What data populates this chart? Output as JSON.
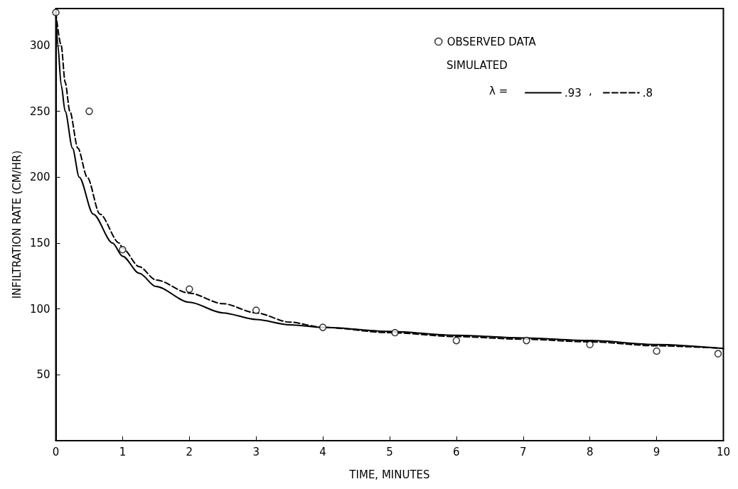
{
  "chart_data": {
    "type": "line",
    "xlabel": "TIME, MINUTES",
    "ylabel": "INFILTRATION RATE (CM/HR)",
    "xlim": [
      0,
      10
    ],
    "xticks": [
      0,
      1,
      2,
      3,
      4,
      5,
      6,
      7,
      8,
      9,
      10
    ],
    "ylim": [
      0,
      328
    ],
    "yticks": [
      50,
      100,
      150,
      200,
      250,
      300
    ],
    "grid": false,
    "legend": "top right",
    "annotations": [
      "SIMULATED",
      "λ =",
      ","
    ],
    "series": [
      {
        "name": "OBSERVED DATA",
        "type": "scatter",
        "marker": "circle",
        "color": "#000000",
        "x": [
          0,
          0.5,
          1,
          2,
          3,
          4,
          5.08,
          6,
          7.05,
          8,
          9,
          9.92
        ],
        "values": [
          325,
          250,
          145,
          115,
          99,
          86,
          82,
          76,
          76,
          73,
          68,
          66
        ]
      },
      {
        "name": ".93",
        "line_style": "solid",
        "color": "#000000",
        "x": [
          0,
          0.03,
          0.08,
          0.14,
          0.25,
          0.35,
          0.56,
          0.85,
          1,
          1.25,
          1.5,
          2,
          2.5,
          3,
          3.5,
          4,
          5,
          6,
          7,
          8,
          9,
          10
        ],
        "values": [
          325,
          300,
          270,
          250,
          222,
          200,
          172,
          150,
          140,
          127,
          117,
          105,
          97,
          92,
          88,
          86,
          83,
          80,
          78,
          76,
          73,
          70
        ]
      },
      {
        "name": ".8",
        "line_style": "dashed",
        "color": "#000000",
        "x": [
          0,
          0.08,
          0.14,
          0.21,
          0.33,
          0.47,
          0.66,
          0.95,
          1,
          1.25,
          1.5,
          2,
          2.5,
          3,
          3.5,
          4,
          5,
          6,
          7,
          8,
          9,
          10
        ],
        "values": [
          325,
          300,
          272,
          250,
          222,
          200,
          172,
          150,
          146,
          132,
          122,
          112,
          104,
          97,
          90,
          86,
          82,
          79,
          77,
          75,
          72,
          70
        ]
      }
    ]
  }
}
